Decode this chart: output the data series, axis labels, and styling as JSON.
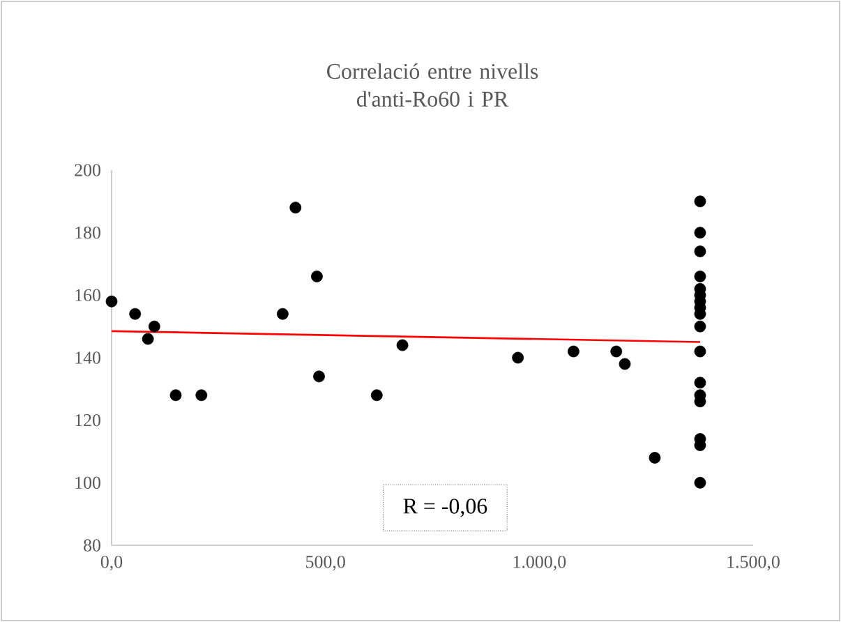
{
  "chart_data": {
    "type": "scatter",
    "title": "Correlació entre nivells d'anti-Ro60 i PR",
    "xlim": [
      0,
      1500
    ],
    "xticks": [
      {
        "value": 0,
        "label": "0,0"
      },
      {
        "value": 500,
        "label": "500,0"
      },
      {
        "value": 1000,
        "label": "1.000,0"
      },
      {
        "value": 1500,
        "label": "1.500,0"
      }
    ],
    "ylim": [
      80,
      200
    ],
    "yticks": [
      80,
      100,
      120,
      140,
      160,
      180,
      200
    ],
    "grid": false,
    "marker": "circle",
    "series": [
      {
        "color": "#000000",
        "x": [
          0,
          55,
          85,
          100,
          150,
          210,
          400,
          430,
          480,
          485,
          620,
          680,
          950,
          1080,
          1180,
          1200,
          1270,
          1376,
          1376,
          1376,
          1376,
          1376,
          1376,
          1376,
          1376,
          1376,
          1376,
          1376,
          1376,
          1376,
          1376,
          1376,
          1376,
          1376
        ],
        "values": [
          158,
          154,
          146,
          150,
          128,
          128,
          154,
          188,
          166,
          134,
          128,
          144,
          140,
          142,
          142,
          138,
          108,
          190,
          180,
          174,
          166,
          162,
          160,
          158,
          156,
          154,
          150,
          142,
          132,
          128,
          126,
          114,
          112,
          100
        ]
      },
      {
        "type": "line",
        "color": "#ff0000",
        "marker": "none",
        "x": [
          0,
          1376
        ],
        "values": [
          148.5,
          145
        ]
      }
    ],
    "annotations": [
      "R = -0,06"
    ]
  }
}
